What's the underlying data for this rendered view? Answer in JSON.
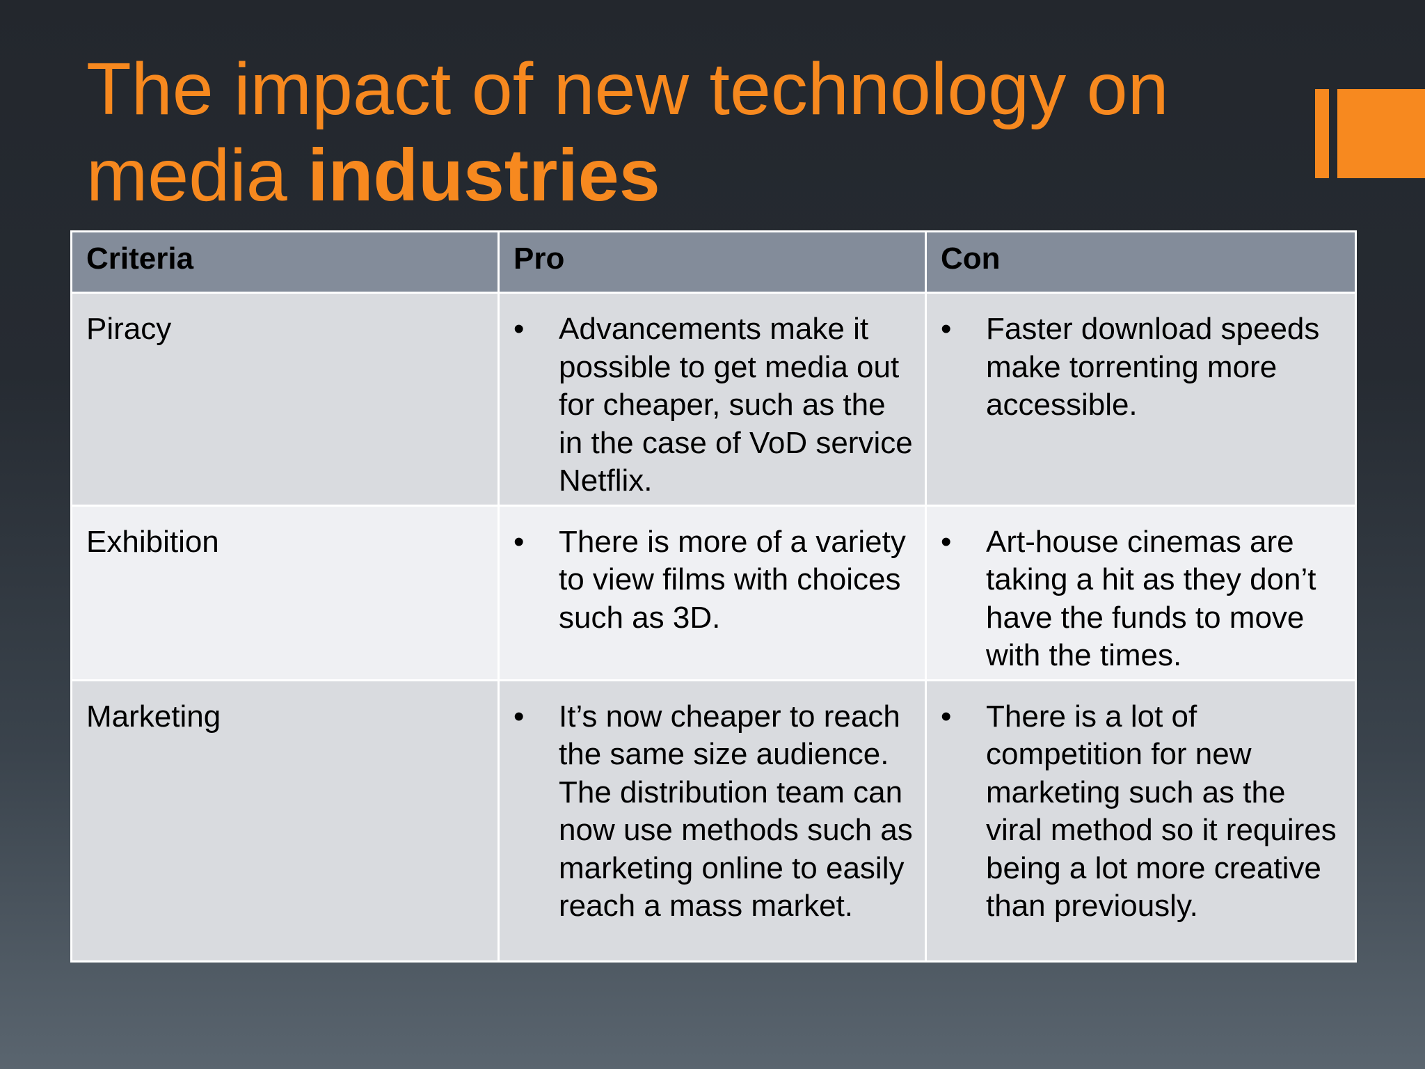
{
  "slide": {
    "title_regular": "The impact of new technology on media ",
    "title_bold": "industries",
    "accent_color": "#f7891f"
  },
  "table": {
    "headers": [
      "Criteria",
      "Pro",
      "Con"
    ],
    "bullet": "•",
    "rows": [
      {
        "criteria": "Piracy",
        "pro": "Advancements make it possible to get media out for cheaper, such as the in the case of VoD service Netflix.",
        "con": "Faster download speeds make torrenting more accessible."
      },
      {
        "criteria": "Exhibition",
        "pro": "There is more of a variety to view films with choices such as 3D.",
        "con": "Art-house cinemas are taking a hit as they don’t have the funds to move with the times."
      },
      {
        "criteria": "Marketing",
        "pro": "It’s now cheaper to reach the same size audience. The distribution team can now use methods such as marketing online to easily reach a mass market.",
        "con": "There is a lot of competition for new marketing such as the viral method so it requires being a lot more creative than previously."
      }
    ]
  }
}
